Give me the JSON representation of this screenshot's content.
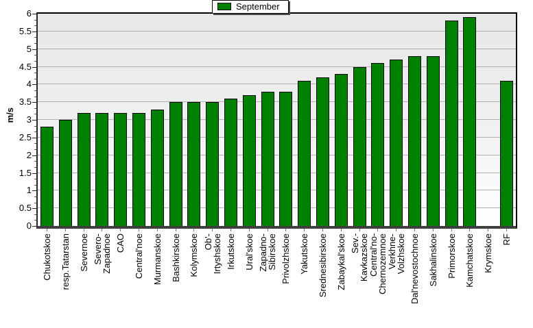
{
  "legend": {
    "label": "September"
  },
  "colors": {
    "bar": "#008000",
    "bar_border": "#000000",
    "gridline": "#b0b0b0",
    "plot_bg_top": "#e7e7e7",
    "plot_bg_bottom": "#ffffff",
    "axis": "#000000",
    "bottom_axis": "#3f3f3f",
    "legend_shadow": "#4a4a4a",
    "text": "#000000"
  },
  "chart_data": {
    "type": "bar",
    "title": "",
    "xlabel": "",
    "ylabel": "m/s",
    "ylim": [
      0,
      6
    ],
    "ytick_step": 0.5,
    "grid": true,
    "legend_position": "top-center",
    "legend_entries": [
      "September"
    ],
    "bar_color": "#008000",
    "categories": [
      "Chukotskoe",
      "resp.Tatarstan",
      "Severnoe",
      "Severo-Zapadnoe",
      "CAO",
      "Central'noe",
      "Murmanskoe",
      "Bashkirskoe",
      "Kolymskoe",
      "Ob'-Irtyshskoe",
      "Irkutskoe",
      "Ural'skoe",
      "Zapadno-Sibirskoe",
      "Privolzhskoe",
      "Yakutskoe",
      "Srednesibirskoe",
      "Zabaykal'skoe",
      "Sev.-Kavkazskoe",
      "Central'no-Chernozemnoe",
      "Verkhne-Volzhskoe",
      "Dal'nevostochnoe",
      "Sakhalinskoe",
      "Primorskoe",
      "Kamchatskoe",
      "Krymskoe",
      "RF"
    ],
    "label_lines": [
      [
        "Chukotskoe"
      ],
      [
        "resp.Tatarstan"
      ],
      [
        "Severnoe"
      ],
      [
        "Severo-",
        "Zapadnoe"
      ],
      [
        "CAO"
      ],
      [
        "Central'noe"
      ],
      [
        "Murmanskoe"
      ],
      [
        "Bashkirskoe"
      ],
      [
        "Kolymskoe"
      ],
      [
        "Ob'-",
        "Irtyshskoe"
      ],
      [
        "Irkutskoe"
      ],
      [
        "Ural'skoe"
      ],
      [
        "Zapadno-",
        "Sibirskoe"
      ],
      [
        "Privolzhskoe"
      ],
      [
        "Yakutskoe"
      ],
      [
        "Srednesibirskoe"
      ],
      [
        "Zabaykal'skoe"
      ],
      [
        "Sev.-",
        "Kavkazskoe"
      ],
      [
        "Central'no-",
        "Chernozemnoe"
      ],
      [
        "Verkhne-",
        "Volzhskoe"
      ],
      [
        "Dal'nevostochnoe"
      ],
      [
        "Sakhalinskoe"
      ],
      [
        "Primorskoe"
      ],
      [
        "Kamchatskoe"
      ],
      [
        "Krymskoe"
      ],
      [
        "RF"
      ]
    ],
    "series": [
      {
        "name": "September",
        "values": [
          2.8,
          3.0,
          3.2,
          3.2,
          3.2,
          3.2,
          3.3,
          3.5,
          3.5,
          3.5,
          3.6,
          3.7,
          3.8,
          3.8,
          4.1,
          4.2,
          4.3,
          4.5,
          4.6,
          4.7,
          4.8,
          4.8,
          5.8,
          5.9,
          null,
          4.1
        ]
      }
    ],
    "yticks": [
      0,
      0.5,
      1,
      1.5,
      2,
      2.5,
      3,
      3.5,
      4,
      4.5,
      5,
      5.5,
      6
    ]
  }
}
